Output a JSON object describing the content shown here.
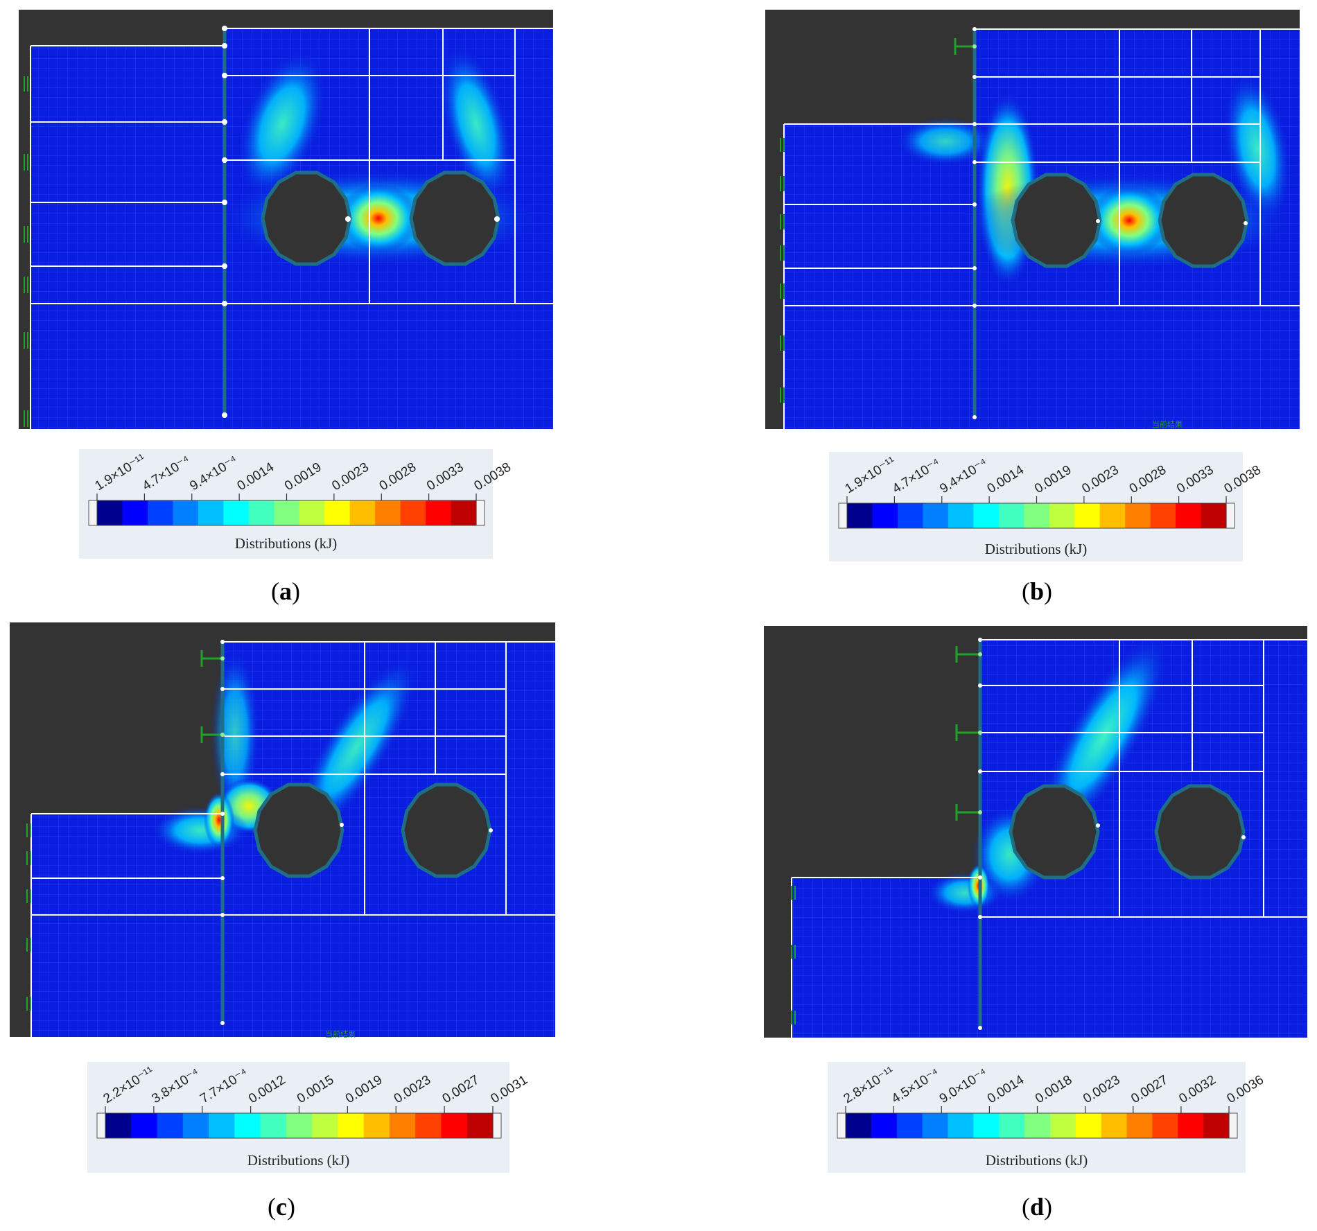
{
  "panels": [
    {
      "id": "a",
      "caption_open": "(",
      "caption_letter": "a",
      "caption_close": ")",
      "colorbar_title": "Distributions (kJ)",
      "ticks": [
        "1.9×10⁻¹¹",
        "4.7×10⁻⁴",
        "9.4×10⁻⁴",
        "0.0014",
        "0.0019",
        "0.0023",
        "0.0028",
        "0.0033",
        "0.0038"
      ],
      "watermark": ""
    },
    {
      "id": "b",
      "caption_open": "(",
      "caption_letter": "b",
      "caption_close": ")",
      "colorbar_title": "Distributions (kJ)",
      "ticks": [
        "1.9×10⁻¹¹",
        "4.7×10⁻⁴",
        "9.4×10⁻⁴",
        "0.0014",
        "0.0019",
        "0.0023",
        "0.0028",
        "0.0033",
        "0.0038"
      ],
      "watermark": "当前结果"
    },
    {
      "id": "c",
      "caption_open": "(",
      "caption_letter": "c",
      "caption_close": ")",
      "colorbar_title": "Distributions (kJ)",
      "ticks": [
        "2.2×10⁻¹¹",
        "3.8×10⁻⁴",
        "7.7×10⁻⁴",
        "0.0012",
        "0.0015",
        "0.0019",
        "0.0023",
        "0.0027",
        "0.0031"
      ],
      "watermark": "当前结果"
    },
    {
      "id": "d",
      "caption_open": "(",
      "caption_letter": "d",
      "caption_close": ")",
      "colorbar_title": "Distributions (kJ)",
      "ticks": [
        "2.8×10⁻¹¹",
        "4.5×10⁻⁴",
        "9.0×10⁻⁴",
        "0.0014",
        "0.0018",
        "0.0023",
        "0.0027",
        "0.0032",
        "0.0036"
      ],
      "watermark": ""
    }
  ],
  "colors": {
    "background_dark": "#333333",
    "field_blue": "#0a1ee0",
    "mesh_line": "#ffffff",
    "wall": "#1f6e86",
    "anchor_green": "#1fa12a",
    "colormap": [
      "#00008f",
      "#0000ff",
      "#0040ff",
      "#0080ff",
      "#00bfff",
      "#00ffff",
      "#40ffbf",
      "#80ff80",
      "#bfff40",
      "#ffff00",
      "#ffbf00",
      "#ff8000",
      "#ff4000",
      "#ff0000",
      "#bf0000"
    ]
  }
}
